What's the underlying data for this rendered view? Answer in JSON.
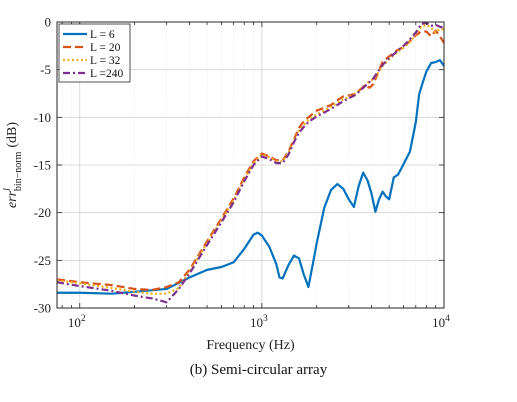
{
  "caption": "(b) Semi-circular array",
  "chart_data": {
    "type": "line",
    "xscale": "log",
    "xlim": [
      75,
      10000
    ],
    "ylim": [
      -30,
      0
    ],
    "xlabel": "Frequency (Hz)",
    "ylabel": "err",
    "ylabel_superscript": "l",
    "ylabel_subscript": "bin−norm",
    "ylabel_unit": "(dB)",
    "xticks": [
      {
        "value": 100,
        "base": "10",
        "exp": "2"
      },
      {
        "value": 1000,
        "base": "10",
        "exp": "3"
      },
      {
        "value": 10000,
        "base": "10",
        "exp": "4"
      }
    ],
    "yticks": [
      0,
      -5,
      -10,
      -15,
      -20,
      -25,
      -30
    ],
    "grid": true,
    "legend_position": "top-left",
    "series": [
      {
        "name": "L =  6",
        "color": "#0072BD",
        "dash": "solid",
        "points": [
          [
            75,
            -28.4
          ],
          [
            100,
            -28.4
          ],
          [
            150,
            -28.5
          ],
          [
            200,
            -28.3
          ],
          [
            300,
            -28.0
          ],
          [
            400,
            -26.8
          ],
          [
            500,
            -26.0
          ],
          [
            600,
            -25.7
          ],
          [
            700,
            -25.2
          ],
          [
            800,
            -23.8
          ],
          [
            900,
            -22.3
          ],
          [
            950,
            -22.1
          ],
          [
            1000,
            -22.4
          ],
          [
            1100,
            -23.6
          ],
          [
            1200,
            -25.4
          ],
          [
            1250,
            -26.8
          ],
          [
            1300,
            -26.9
          ],
          [
            1400,
            -25.5
          ],
          [
            1500,
            -24.5
          ],
          [
            1600,
            -24.8
          ],
          [
            1700,
            -26.5
          ],
          [
            1800,
            -27.8
          ],
          [
            1900,
            -25.5
          ],
          [
            2000,
            -23.2
          ],
          [
            2200,
            -19.5
          ],
          [
            2400,
            -17.6
          ],
          [
            2600,
            -17.0
          ],
          [
            2800,
            -17.5
          ],
          [
            3000,
            -18.6
          ],
          [
            3200,
            -19.4
          ],
          [
            3400,
            -17.2
          ],
          [
            3600,
            -15.8
          ],
          [
            3800,
            -16.6
          ],
          [
            4000,
            -18.0
          ],
          [
            4200,
            -19.9
          ],
          [
            4400,
            -18.6
          ],
          [
            4600,
            -17.8
          ],
          [
            4800,
            -18.3
          ],
          [
            5000,
            -18.6
          ],
          [
            5300,
            -16.3
          ],
          [
            5600,
            -16.0
          ],
          [
            6000,
            -14.9
          ],
          [
            6500,
            -13.6
          ],
          [
            7000,
            -10.5
          ],
          [
            7300,
            -7.6
          ],
          [
            7600,
            -6.5
          ],
          [
            8000,
            -5.2
          ],
          [
            8500,
            -4.3
          ],
          [
            9000,
            -4.2
          ],
          [
            9500,
            -4.0
          ],
          [
            10000,
            -4.6
          ]
        ]
      },
      {
        "name": "L = 20",
        "color": "#D95319",
        "dash": "dashed",
        "points": [
          [
            75,
            -27.0
          ],
          [
            100,
            -27.3
          ],
          [
            150,
            -27.6
          ],
          [
            200,
            -28.0
          ],
          [
            250,
            -28.1
          ],
          [
            300,
            -27.8
          ],
          [
            350,
            -27.3
          ],
          [
            400,
            -26.0
          ],
          [
            500,
            -23.0
          ],
          [
            600,
            -20.6
          ],
          [
            700,
            -18.5
          ],
          [
            800,
            -16.3
          ],
          [
            900,
            -14.6
          ],
          [
            1000,
            -13.8
          ],
          [
            1100,
            -14.1
          ],
          [
            1200,
            -14.5
          ],
          [
            1300,
            -14.5
          ],
          [
            1400,
            -13.6
          ],
          [
            1500,
            -12.3
          ],
          [
            1600,
            -11.1
          ],
          [
            1700,
            -10.4
          ],
          [
            1800,
            -10.0
          ],
          [
            2000,
            -9.3
          ],
          [
            2200,
            -9.0
          ],
          [
            2400,
            -8.7
          ],
          [
            2600,
            -8.2
          ],
          [
            2800,
            -7.8
          ],
          [
            3000,
            -7.7
          ],
          [
            3300,
            -7.5
          ],
          [
            3500,
            -7.0
          ],
          [
            3700,
            -6.6
          ],
          [
            3900,
            -6.9
          ],
          [
            4100,
            -6.5
          ],
          [
            4300,
            -5.5
          ],
          [
            4600,
            -4.2
          ],
          [
            5000,
            -3.6
          ],
          [
            5500,
            -3.0
          ],
          [
            6000,
            -2.6
          ],
          [
            6500,
            -2.0
          ],
          [
            7000,
            -1.4
          ],
          [
            7500,
            -1.0
          ],
          [
            8000,
            -1.0
          ],
          [
            8500,
            -1.5
          ],
          [
            9000,
            -0.9
          ],
          [
            9500,
            -1.5
          ],
          [
            10000,
            -2.2
          ]
        ]
      },
      {
        "name": "L = 32",
        "color": "#EDB120",
        "dash": "dotted",
        "points": [
          [
            75,
            -27.1
          ],
          [
            100,
            -27.4
          ],
          [
            150,
            -27.9
          ],
          [
            200,
            -28.3
          ],
          [
            250,
            -28.5
          ],
          [
            300,
            -28.5
          ],
          [
            350,
            -27.9
          ],
          [
            400,
            -26.2
          ],
          [
            500,
            -23.2
          ],
          [
            600,
            -20.8
          ],
          [
            700,
            -18.7
          ],
          [
            800,
            -16.5
          ],
          [
            900,
            -14.8
          ],
          [
            1000,
            -13.9
          ],
          [
            1100,
            -14.2
          ],
          [
            1200,
            -14.6
          ],
          [
            1300,
            -14.6
          ],
          [
            1400,
            -13.7
          ],
          [
            1500,
            -12.4
          ],
          [
            1600,
            -11.4
          ],
          [
            1700,
            -10.8
          ],
          [
            1800,
            -10.3
          ],
          [
            2000,
            -9.7
          ],
          [
            2200,
            -9.3
          ],
          [
            2400,
            -8.9
          ],
          [
            2600,
            -8.5
          ],
          [
            2800,
            -8.1
          ],
          [
            3000,
            -7.9
          ],
          [
            3300,
            -7.4
          ],
          [
            3500,
            -7.0
          ],
          [
            3700,
            -6.6
          ],
          [
            3900,
            -6.2
          ],
          [
            4100,
            -6.0
          ],
          [
            4300,
            -5.5
          ],
          [
            4600,
            -4.6
          ],
          [
            5000,
            -3.9
          ],
          [
            5500,
            -3.2
          ],
          [
            6000,
            -2.7
          ],
          [
            6500,
            -2.1
          ],
          [
            7000,
            -1.3
          ],
          [
            7500,
            -0.5
          ],
          [
            8000,
            -0.3
          ],
          [
            8500,
            -0.6
          ],
          [
            9000,
            -1.1
          ],
          [
            9500,
            -0.7
          ],
          [
            10000,
            -0.8
          ]
        ]
      },
      {
        "name": "L =240",
        "color": "#7E2F8E",
        "dash": "dashdot",
        "points": [
          [
            75,
            -27.3
          ],
          [
            100,
            -27.7
          ],
          [
            150,
            -28.2
          ],
          [
            200,
            -28.7
          ],
          [
            250,
            -29.0
          ],
          [
            300,
            -29.4
          ],
          [
            350,
            -28.0
          ],
          [
            400,
            -26.4
          ],
          [
            500,
            -23.4
          ],
          [
            600,
            -21.0
          ],
          [
            700,
            -18.9
          ],
          [
            800,
            -16.7
          ],
          [
            900,
            -15.0
          ],
          [
            1000,
            -14.1
          ],
          [
            1100,
            -14.4
          ],
          [
            1200,
            -14.8
          ],
          [
            1300,
            -14.8
          ],
          [
            1400,
            -13.9
          ],
          [
            1500,
            -12.6
          ],
          [
            1600,
            -11.6
          ],
          [
            1700,
            -11.0
          ],
          [
            1800,
            -10.5
          ],
          [
            2000,
            -9.9
          ],
          [
            2200,
            -9.5
          ],
          [
            2400,
            -9.1
          ],
          [
            2600,
            -8.7
          ],
          [
            2800,
            -8.3
          ],
          [
            3000,
            -8.0
          ],
          [
            3300,
            -7.6
          ],
          [
            3500,
            -7.1
          ],
          [
            3700,
            -6.7
          ],
          [
            3900,
            -6.3
          ],
          [
            4100,
            -5.9
          ],
          [
            4300,
            -5.3
          ],
          [
            4600,
            -4.5
          ],
          [
            5000,
            -3.8
          ],
          [
            5500,
            -3.1
          ],
          [
            6000,
            -2.5
          ],
          [
            6500,
            -1.8
          ],
          [
            7000,
            -1.1
          ],
          [
            7500,
            -0.2
          ],
          [
            8000,
            -0.1
          ],
          [
            8500,
            -0.4
          ],
          [
            9000,
            -0.3
          ],
          [
            9500,
            -0.5
          ],
          [
            10000,
            -0.6
          ]
        ]
      }
    ]
  }
}
